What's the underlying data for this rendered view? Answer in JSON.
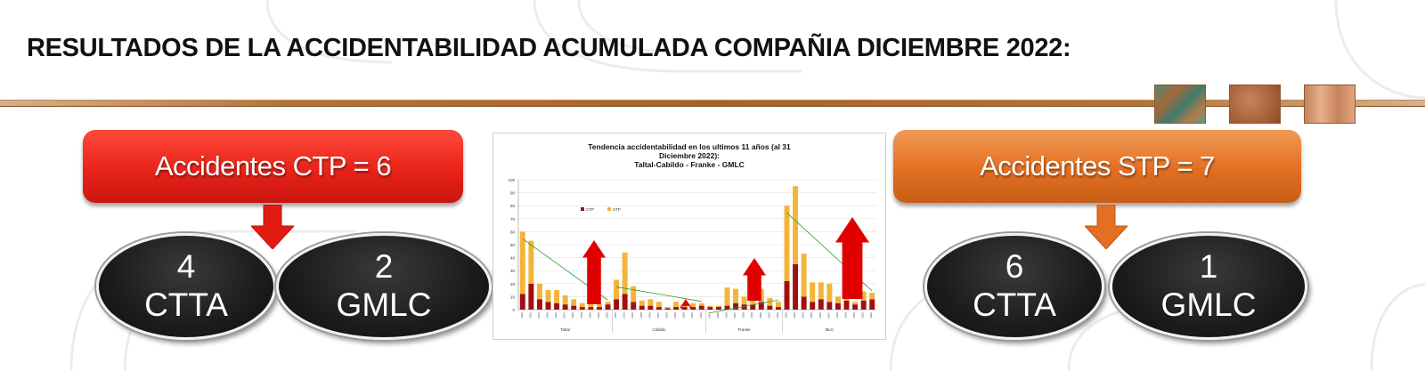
{
  "title": "RESULTADOS DE LA ACCIDENTABILIDAD ACUMULADA COMPAÑIA DICIEMBRE 2022:",
  "left": {
    "banner": "Accidentes CTP = 6",
    "ovals": [
      {
        "num": "4",
        "label": "CTTA"
      },
      {
        "num": "2",
        "label": "GMLC"
      }
    ]
  },
  "right": {
    "banner": "Accidentes STP = 7",
    "ovals": [
      {
        "num": "6",
        "label": "CTTA"
      },
      {
        "num": "1",
        "label": "GMLC"
      }
    ]
  },
  "colors": {
    "ctp_banner": "#e8231a",
    "stp_banner": "#e26f22",
    "ctp_series": "#a01010",
    "stp_series": "#f2b43a",
    "trend": "#2aa02a",
    "arrow": "#e00000"
  },
  "chart_data": {
    "type": "bar",
    "stacked": true,
    "title_lines": [
      "Tendencia accidentabilidad en los ultimos 11 años (al 31",
      "Diciembre 2022):",
      "Taltal-Cabildo - Franke - GMLC"
    ],
    "ylim": [
      0,
      100
    ],
    "yticks": [
      "0",
      "10",
      "20",
      "30",
      "40",
      "50",
      "60",
      "70",
      "80",
      "90",
      "100"
    ],
    "legend": [
      "CTP",
      "STP"
    ],
    "legend_position": "top-left",
    "groups": [
      {
        "name": "Taltal",
        "years": [
          "2012",
          "2013",
          "2014",
          "2015",
          "2016",
          "2017",
          "2018",
          "2019",
          "2020",
          "2021",
          "2022"
        ],
        "ctp": [
          12,
          20,
          8,
          6,
          5,
          4,
          3,
          2,
          2,
          2,
          4
        ],
        "stp": [
          48,
          33,
          12,
          9,
          10,
          7,
          5,
          3,
          2,
          2,
          2
        ]
      },
      {
        "name": "Cabildo",
        "years": [
          "2012",
          "2013",
          "2014",
          "2015",
          "2016",
          "2017",
          "2018",
          "2019",
          "2020",
          "2021",
          "2022"
        ],
        "ctp": [
          8,
          12,
          6,
          3,
          3,
          2,
          1,
          2,
          2,
          2,
          3
        ],
        "stp": [
          15,
          32,
          12,
          4,
          5,
          4,
          1,
          4,
          2,
          3,
          2
        ]
      },
      {
        "name": "Franke",
        "years": [
          "2014",
          "2015",
          "2016",
          "2017",
          "2018",
          "2019",
          "2020",
          "2021",
          "2022"
        ],
        "ctp": [
          2,
          2,
          3,
          5,
          4,
          4,
          6,
          3,
          2
        ],
        "stp": [
          1,
          1,
          14,
          11,
          6,
          8,
          10,
          6,
          4
        ]
      },
      {
        "name": "MLC",
        "years": [
          "2012",
          "2013",
          "2014",
          "2015",
          "2016",
          "2017",
          "2018",
          "2019",
          "2020",
          "2021",
          "2022"
        ],
        "ctp": [
          22,
          35,
          10,
          6,
          8,
          6,
          5,
          7,
          4,
          7,
          8
        ],
        "stp": [
          58,
          60,
          33,
          15,
          13,
          14,
          5,
          5,
          2,
          7,
          5
        ]
      }
    ]
  }
}
